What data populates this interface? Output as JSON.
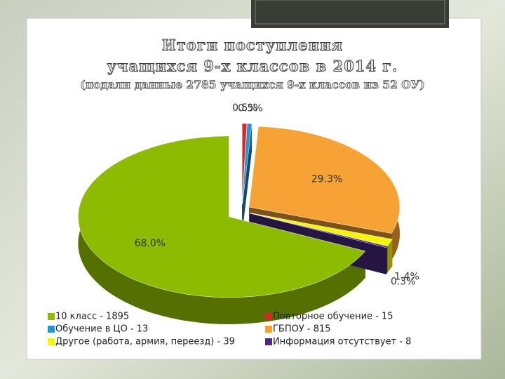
{
  "chart_data": {
    "type": "pie",
    "title": [
      "Итоги поступления",
      "учащихся 9-х классов в 2014 г."
    ],
    "subtitle": "(подали данные 2785 учащихся 9-х классов из 52 ОУ)",
    "categories": [
      "10 класс - 1895",
      "Повторное обучение - 15",
      "Обучение в ЦО - 13",
      "ГБПОУ - 815",
      "Другое (работа, армия, переезд) - 39",
      "Информация отсутствует - 8"
    ],
    "values": [
      68.0,
      0.5,
      0.5,
      29.3,
      1.4,
      0.3
    ],
    "value_labels": [
      "68.0%",
      "0.5%",
      "0.5%",
      "29.3%",
      "1.4%",
      "0.3%"
    ],
    "colors": [
      "#8cbb00",
      "#e02424",
      "#1f96d6",
      "#f7a234",
      "#f5f500",
      "#4a2a84"
    ]
  }
}
